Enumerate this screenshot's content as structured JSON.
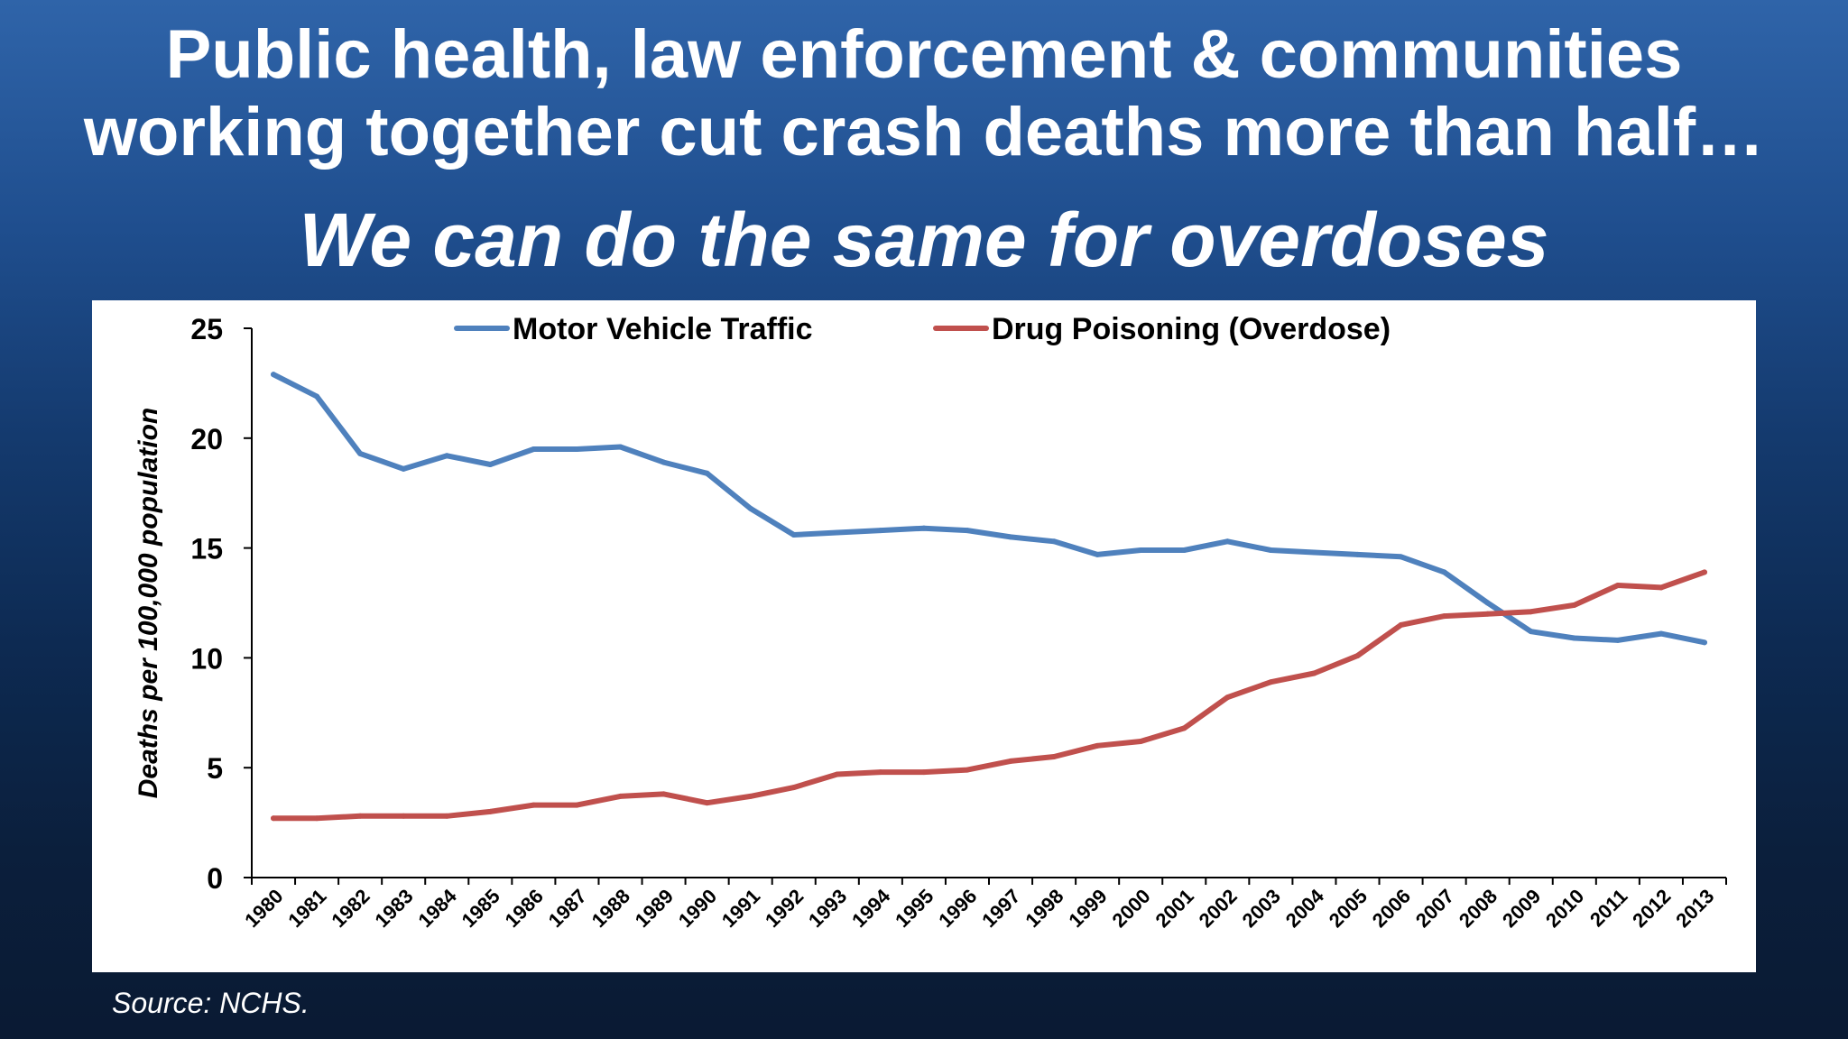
{
  "slide": {
    "title_line1": "Public health, law enforcement & communities",
    "title_line2": "working together cut crash deaths more than half…",
    "subtitle": "We can do the same for overdoses",
    "source": "Source: NCHS."
  },
  "colors": {
    "background_top": "#2f64a9",
    "background_bottom": "#0a1a33",
    "motor_vehicle": "#4f81bd",
    "drug_poisoning": "#c0504d"
  },
  "chart_data": {
    "type": "line",
    "title": "",
    "xlabel": "",
    "ylabel": "Deaths per 100,000 population",
    "ylim": [
      0,
      25
    ],
    "yticks": [
      0,
      5,
      10,
      15,
      20,
      25
    ],
    "grid": false,
    "legend_position": "top",
    "categories": [
      "1980",
      "1981",
      "1982",
      "1983",
      "1984",
      "1985",
      "1986",
      "1987",
      "1988",
      "1989",
      "1990",
      "1991",
      "1992",
      "1993",
      "1994",
      "1995",
      "1996",
      "1997",
      "1998",
      "1999",
      "2000",
      "2001",
      "2002",
      "2003",
      "2004",
      "2005",
      "2006",
      "2007",
      "2008",
      "2009",
      "2010",
      "2011",
      "2012",
      "2013"
    ],
    "series": [
      {
        "name": "Motor Vehicle Traffic",
        "color": "#4f81bd",
        "values": [
          22.9,
          21.9,
          19.3,
          18.6,
          19.2,
          18.8,
          19.5,
          19.5,
          19.6,
          18.9,
          18.4,
          16.8,
          15.6,
          15.7,
          15.8,
          15.9,
          15.8,
          15.5,
          15.3,
          14.7,
          14.9,
          14.9,
          15.3,
          14.9,
          14.8,
          14.7,
          14.6,
          13.9,
          12.5,
          11.2,
          10.9,
          10.8,
          11.1,
          10.7
        ]
      },
      {
        "name": "Drug Poisoning (Overdose)",
        "color": "#c0504d",
        "values": [
          2.7,
          2.7,
          2.8,
          2.8,
          2.8,
          3.0,
          3.3,
          3.3,
          3.7,
          3.8,
          3.4,
          3.7,
          4.1,
          4.7,
          4.8,
          4.8,
          4.9,
          5.3,
          5.5,
          6.0,
          6.2,
          6.8,
          8.2,
          8.9,
          9.3,
          10.1,
          11.5,
          11.9,
          12.0,
          12.1,
          12.4,
          13.3,
          13.2,
          13.9
        ]
      }
    ]
  }
}
